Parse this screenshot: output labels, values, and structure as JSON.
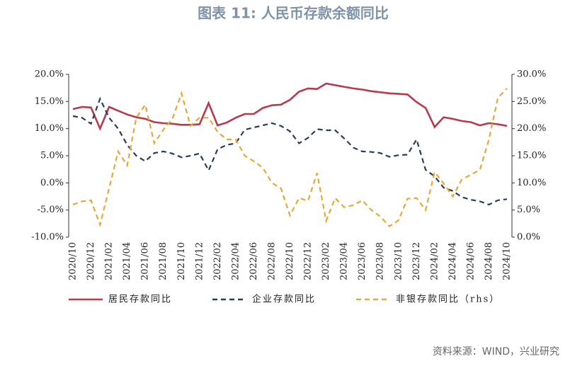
{
  "chart_data": {
    "type": "line",
    "title": "图表 11: 人民币存款余额同比",
    "source": "资料来源：WIND，兴业研究",
    "categories": [
      "2020/10",
      null,
      "2020/12",
      null,
      "2021/02",
      null,
      "2021/04",
      null,
      "2021/06",
      null,
      "2021/08",
      null,
      "2021/10",
      null,
      "2021/12",
      null,
      "2022/02",
      null,
      "2022/04",
      null,
      "2022/06",
      null,
      "2022/08",
      null,
      "2022/10",
      null,
      "2022/12",
      null,
      "2023/02",
      null,
      "2023/04",
      null,
      "2023/06",
      null,
      "2023/08",
      null,
      "2023/10",
      null,
      "2023/12",
      null,
      "2024/02",
      null,
      "2024/04",
      null,
      "2024/06",
      null,
      "2024/08",
      null,
      "2024/10"
    ],
    "ylim": [
      -10,
      20
    ],
    "yticks": [
      {
        "value": -10,
        "label": "-10.0%"
      },
      {
        "value": -5,
        "label": "-5.0%"
      },
      {
        "value": 0,
        "label": "0.0%"
      },
      {
        "value": 5,
        "label": "5.0%"
      },
      {
        "value": 10,
        "label": "10.0%"
      },
      {
        "value": 15,
        "label": "15.0%"
      },
      {
        "value": 20,
        "label": "20.0%"
      }
    ],
    "y2lim": [
      0,
      30
    ],
    "y2ticks": [
      {
        "value": 0,
        "label": "0.0%"
      },
      {
        "value": 5,
        "label": "5.0%"
      },
      {
        "value": 10,
        "label": "10.0%"
      },
      {
        "value": 15,
        "label": "15.0%"
      },
      {
        "value": 20,
        "label": "20.0%"
      },
      {
        "value": 25,
        "label": "25.0%"
      },
      {
        "value": 30,
        "label": "30.0%"
      }
    ],
    "series": [
      {
        "name": "居民存款同比",
        "color": "#b83a4b",
        "linestyle": "solid",
        "values": [
          13.6,
          14.0,
          13.9,
          10.0,
          14.0,
          13.3,
          12.6,
          12.1,
          11.8,
          11.2,
          11.0,
          10.9,
          10.7,
          10.7,
          10.8,
          14.7,
          10.6,
          11.1,
          12.0,
          12.7,
          12.7,
          13.8,
          14.3,
          14.4,
          15.3,
          16.8,
          17.4,
          17.3,
          18.3,
          18.0,
          17.7,
          17.4,
          17.2,
          16.9,
          16.7,
          16.5,
          16.4,
          16.3,
          14.9,
          13.8,
          10.3,
          12.1,
          11.8,
          11.4,
          11.2,
          10.6,
          11.0,
          10.8,
          10.5
        ]
      },
      {
        "name": "企业存款同比",
        "color": "#2b3d5c",
        "linestyle": "dashed",
        "values": [
          12.3,
          12.0,
          10.9,
          15.5,
          12.0,
          10.0,
          7.0,
          5.0,
          4.0,
          5.5,
          5.8,
          5.4,
          4.7,
          5.0,
          5.4,
          2.3,
          6.2,
          7.0,
          7.3,
          9.8,
          10.2,
          10.6,
          11.0,
          10.5,
          9.5,
          7.3,
          8.3,
          9.9,
          9.7,
          9.7,
          8.2,
          6.5,
          5.8,
          5.7,
          5.5,
          4.8,
          5.1,
          5.2,
          8.0,
          2.4,
          1.2,
          -0.9,
          -1.5,
          -2.6,
          -3.1,
          -3.4,
          -4.0,
          -3.2,
          -3.0
        ]
      },
      {
        "name": "非银存款同比（rhs）",
        "color": "#e8a838",
        "linestyle": "dashed",
        "axis": "y2",
        "values": [
          6.0,
          6.6,
          6.8,
          2.3,
          9.0,
          15.8,
          13.2,
          22.0,
          24.4,
          17.3,
          19.8,
          21.8,
          26.5,
          20.5,
          22.0,
          22.0,
          19.4,
          18.0,
          18.0,
          15.0,
          14.0,
          12.8,
          10.0,
          9.0,
          4.0,
          7.2,
          6.7,
          11.8,
          3.0,
          7.2,
          5.5,
          5.9,
          6.8,
          5.0,
          3.8,
          2.0,
          3.1,
          7.1,
          7.2,
          5.0,
          12.0,
          9.9,
          7.5,
          10.6,
          11.5,
          12.4,
          18.0,
          25.7,
          27.4
        ]
      }
    ]
  }
}
